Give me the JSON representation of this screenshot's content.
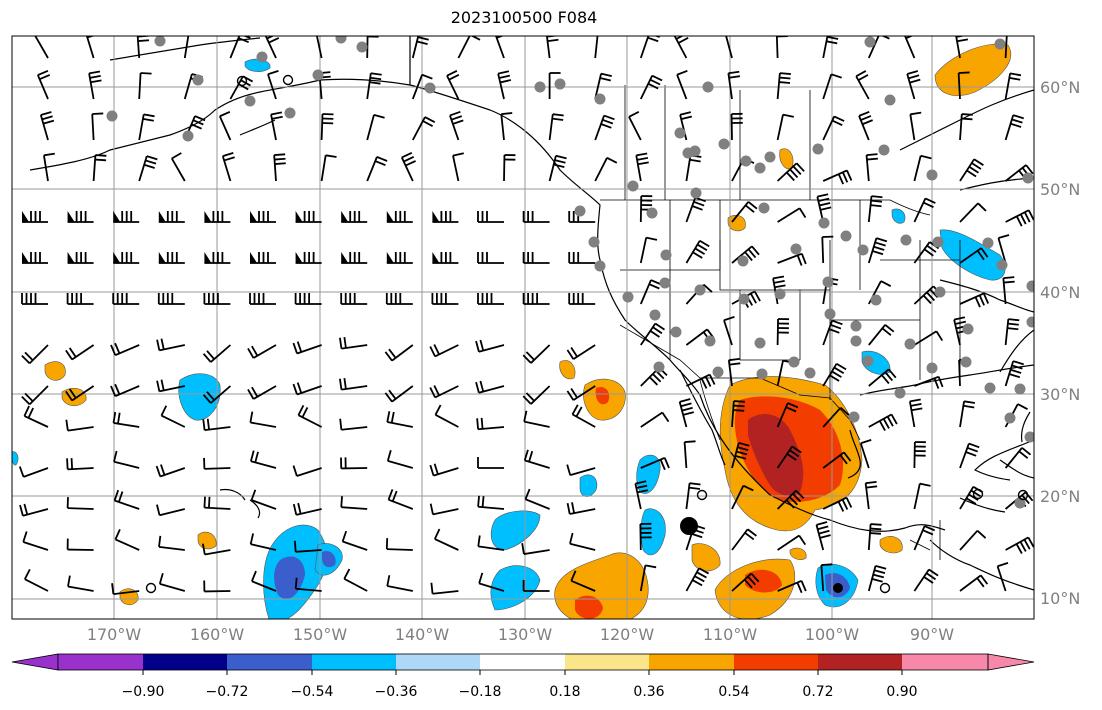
{
  "title": "2023100500 F084",
  "lon_labels": [
    "170°W",
    "160°W",
    "150°W",
    "140°W",
    "130°W",
    "120°W",
    "110°W",
    "100°W",
    "90°W"
  ],
  "lat_labels": [
    "60°N",
    "50°N",
    "40°N",
    "30°N",
    "20°N",
    "10°N"
  ],
  "colorbar": {
    "labels": [
      "−0.90",
      "−0.72",
      "−0.54",
      "−0.36",
      "−0.18",
      "0.18",
      "0.36",
      "0.54",
      "0.72",
      "0.90"
    ],
    "colors": [
      "#9932cc",
      "#00008b",
      "#3a5fcd",
      "#00bfff",
      "#add8f8",
      "#ffffff",
      "#fbe58a",
      "#f8a500",
      "#f23c00",
      "#b22222",
      "#f888aa"
    ]
  },
  "map": {
    "lon_range": [
      -178,
      -81
    ],
    "lat_range": [
      8,
      65
    ],
    "projection": "PlateCarree",
    "layers": [
      "coastlines",
      "country-borders",
      "state-borders",
      "gridlines",
      "wind-barbs",
      "station-markers",
      "filled-contours"
    ]
  }
}
